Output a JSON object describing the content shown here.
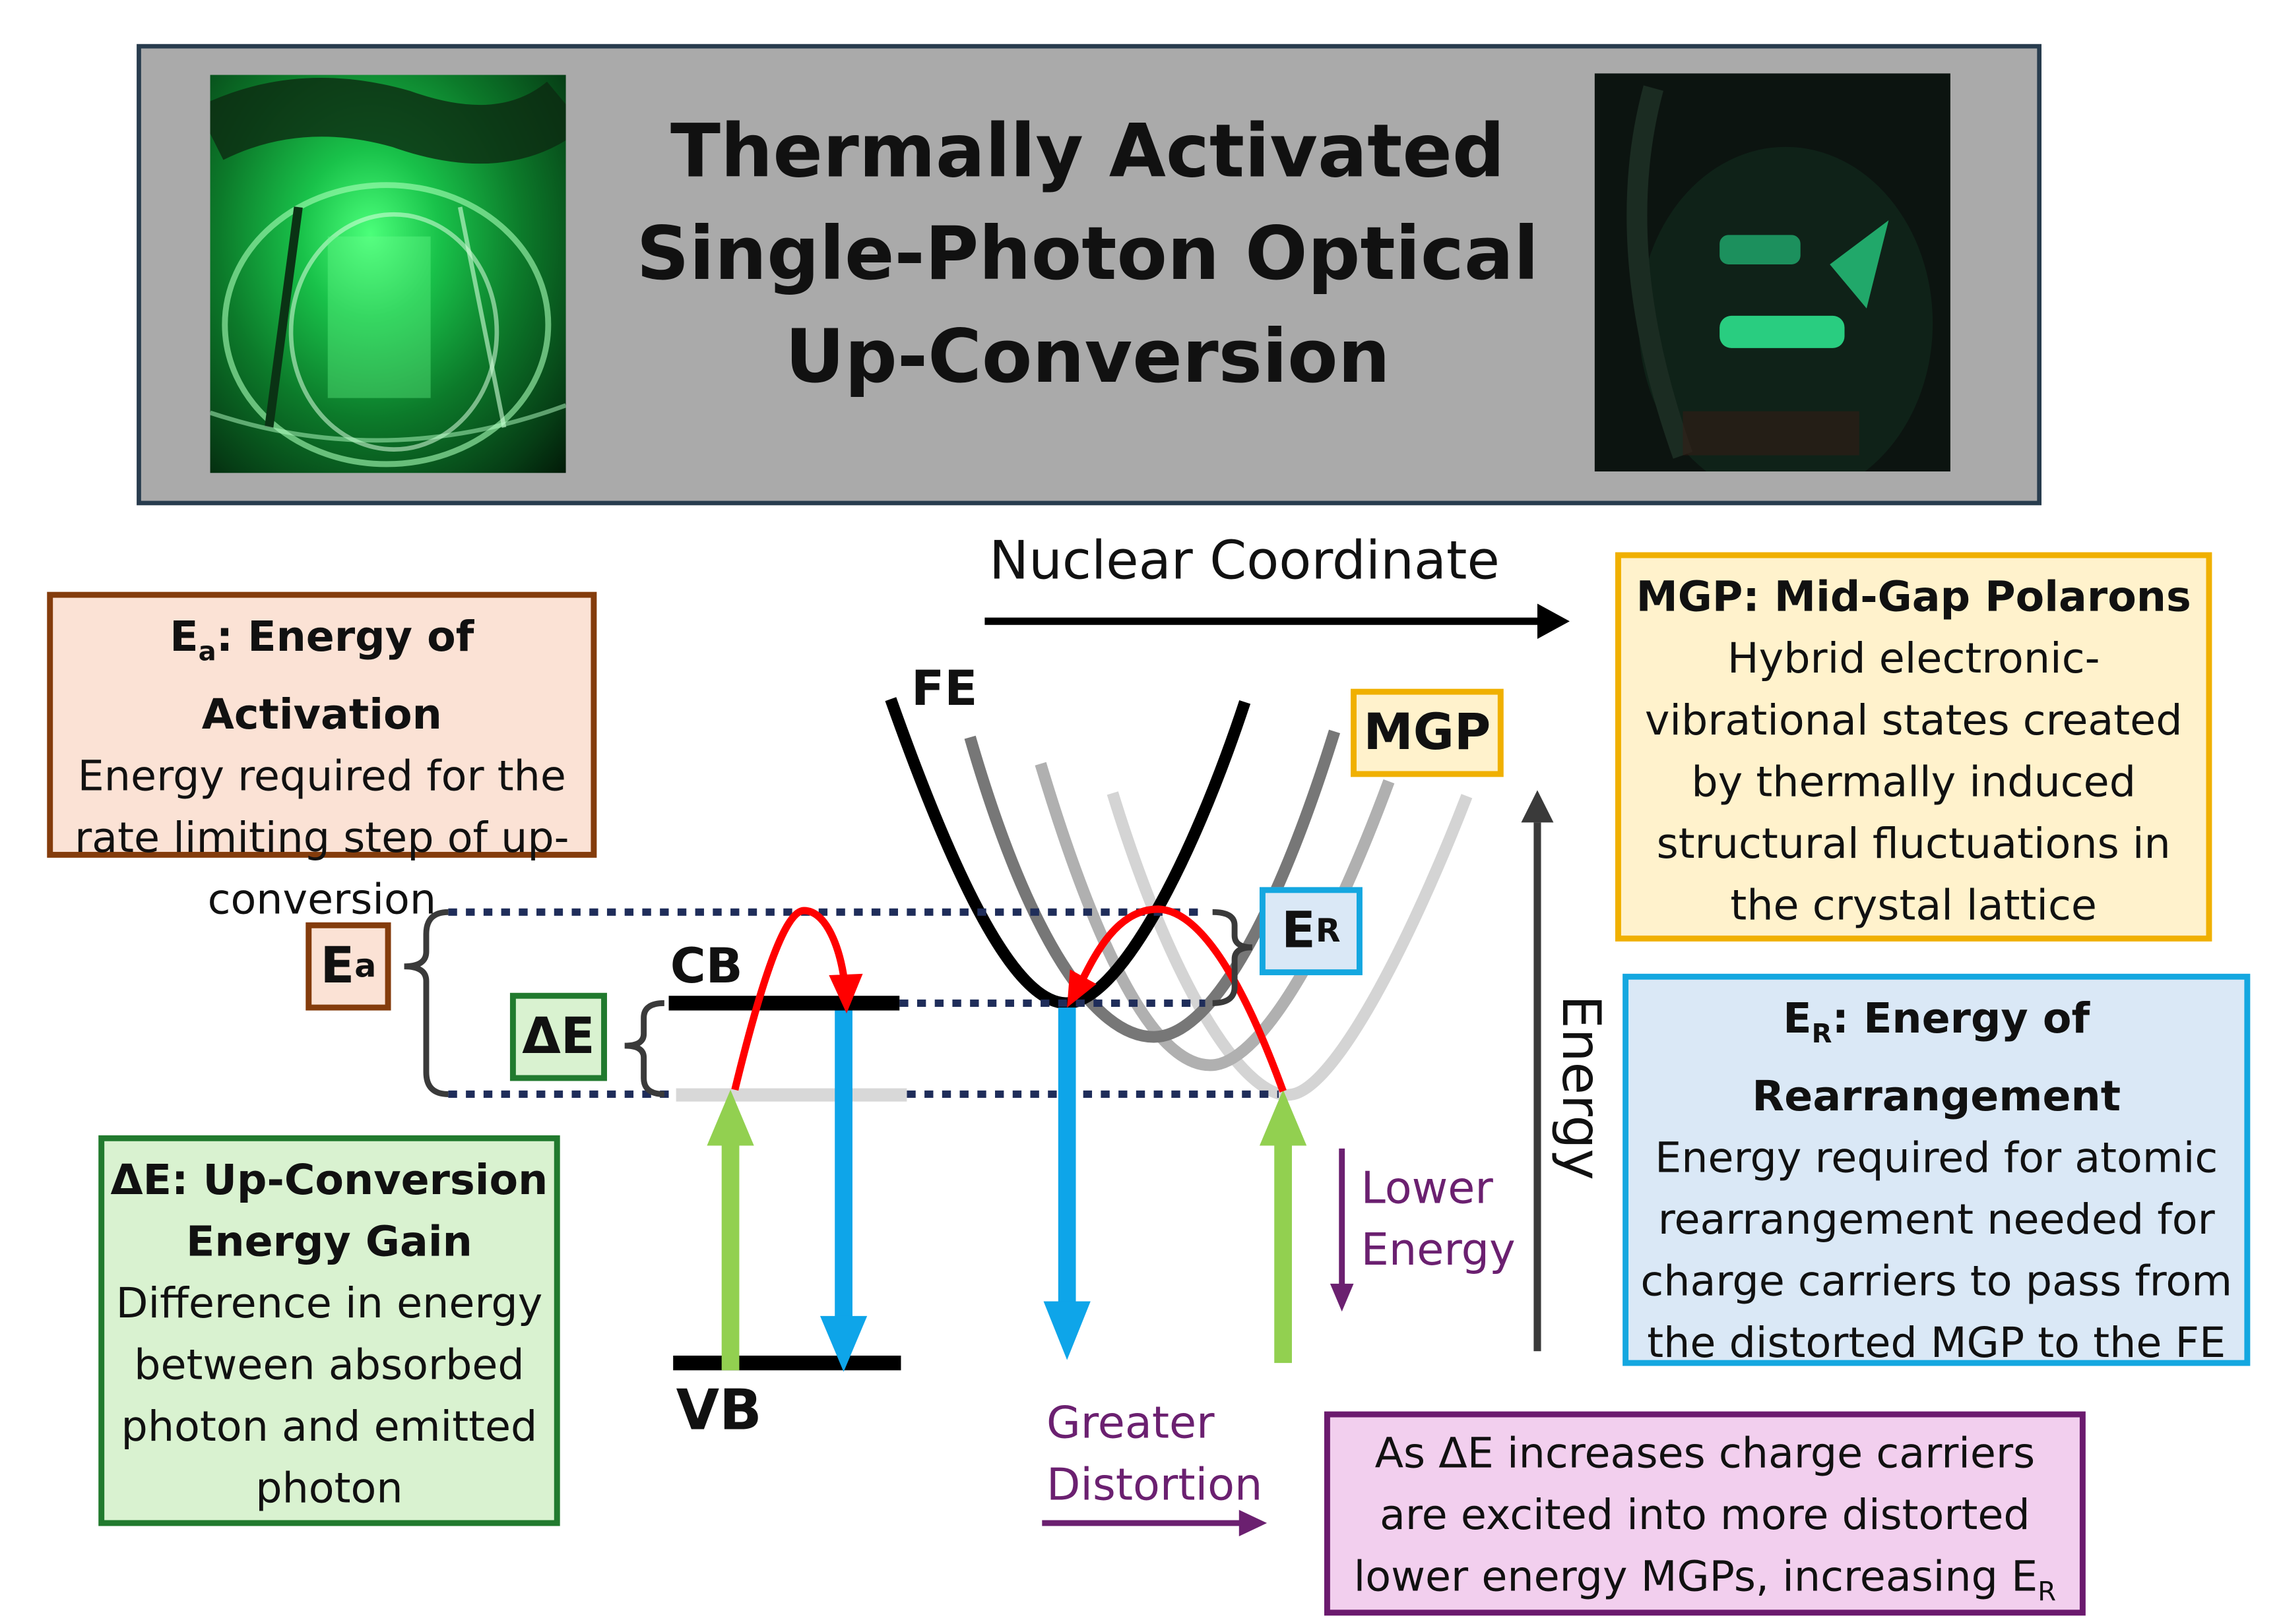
{
  "colors": {
    "header_bg": "#aaaaaa",
    "header_border": "#283c4e",
    "ea_box_bg": "#fbe2d5",
    "ea_box_border": "#843c0c",
    "de_box_bg": "#d9f2d0",
    "de_box_border": "#217a2e",
    "mgp_box_bg": "#fff2cc",
    "mgp_box_border": "#f0b000",
    "er_box_bg": "#dae8f6",
    "er_box_border": "#14a7e0",
    "note_box_bg": "#f2cfee",
    "note_box_border": "#6b1a6e",
    "red_arrow": "#ff0000",
    "blue_arrow": "#0ea5e9",
    "green_arrow": "#92d050",
    "purple": "#6b2070",
    "dotted_line": "#1f2d5a"
  },
  "header": {
    "title_lines": [
      "Thermally Activated",
      "Single-Photon Optical",
      "Up-Conversion"
    ],
    "left_photo": "green-glowing-crystal-photo",
    "right_photo": "dim-green-emission-photo"
  },
  "ea_box": {
    "title_main": "E",
    "title_sub": "a",
    "title_rest": ": Energy of Activation",
    "lines": [
      "Energy required for the",
      "rate limiting step of up-",
      "conversion"
    ]
  },
  "de_box": {
    "title_lines": [
      "ΔE: Up-Conversion",
      "Energy Gain"
    ],
    "lines": [
      "Difference in energy",
      "between absorbed",
      "photon and emitted",
      "photon"
    ]
  },
  "mgp_box": {
    "title": "MGP: Mid-Gap Polarons",
    "lines": [
      "Hybrid electronic-",
      "vibrational states created",
      "by thermally induced",
      "structural fluctuations in",
      "the crystal lattice"
    ]
  },
  "er_box": {
    "title_main": "E",
    "title_sub": "R",
    "title_rest": ": Energy of",
    "title_line2": "Rearrangement",
    "lines": [
      "Energy required for atomic",
      "rearrangement needed for",
      "charge carriers to pass from",
      "the distorted MGP to  the FE"
    ]
  },
  "note_box": {
    "lines": [
      "As ΔE increases charge carriers",
      "are excited into more distorted",
      "lower energy MGPs, increasing E"
    ],
    "last_sub": "R"
  },
  "tags": {
    "ea_main": "E",
    "ea_sub": "a",
    "de": "ΔE",
    "er_main": "E",
    "er_sub": "R",
    "mgp": "MGP"
  },
  "labels": {
    "nuclear_coordinate": "Nuclear Coordinate",
    "energy": "Energy",
    "fe": "FE",
    "cb": "CB",
    "vb": "VB",
    "lower_energy_1": "Lower",
    "lower_energy_2": "Energy",
    "greater_distortion_1": "Greater",
    "greater_distortion_2": "Distortion"
  }
}
